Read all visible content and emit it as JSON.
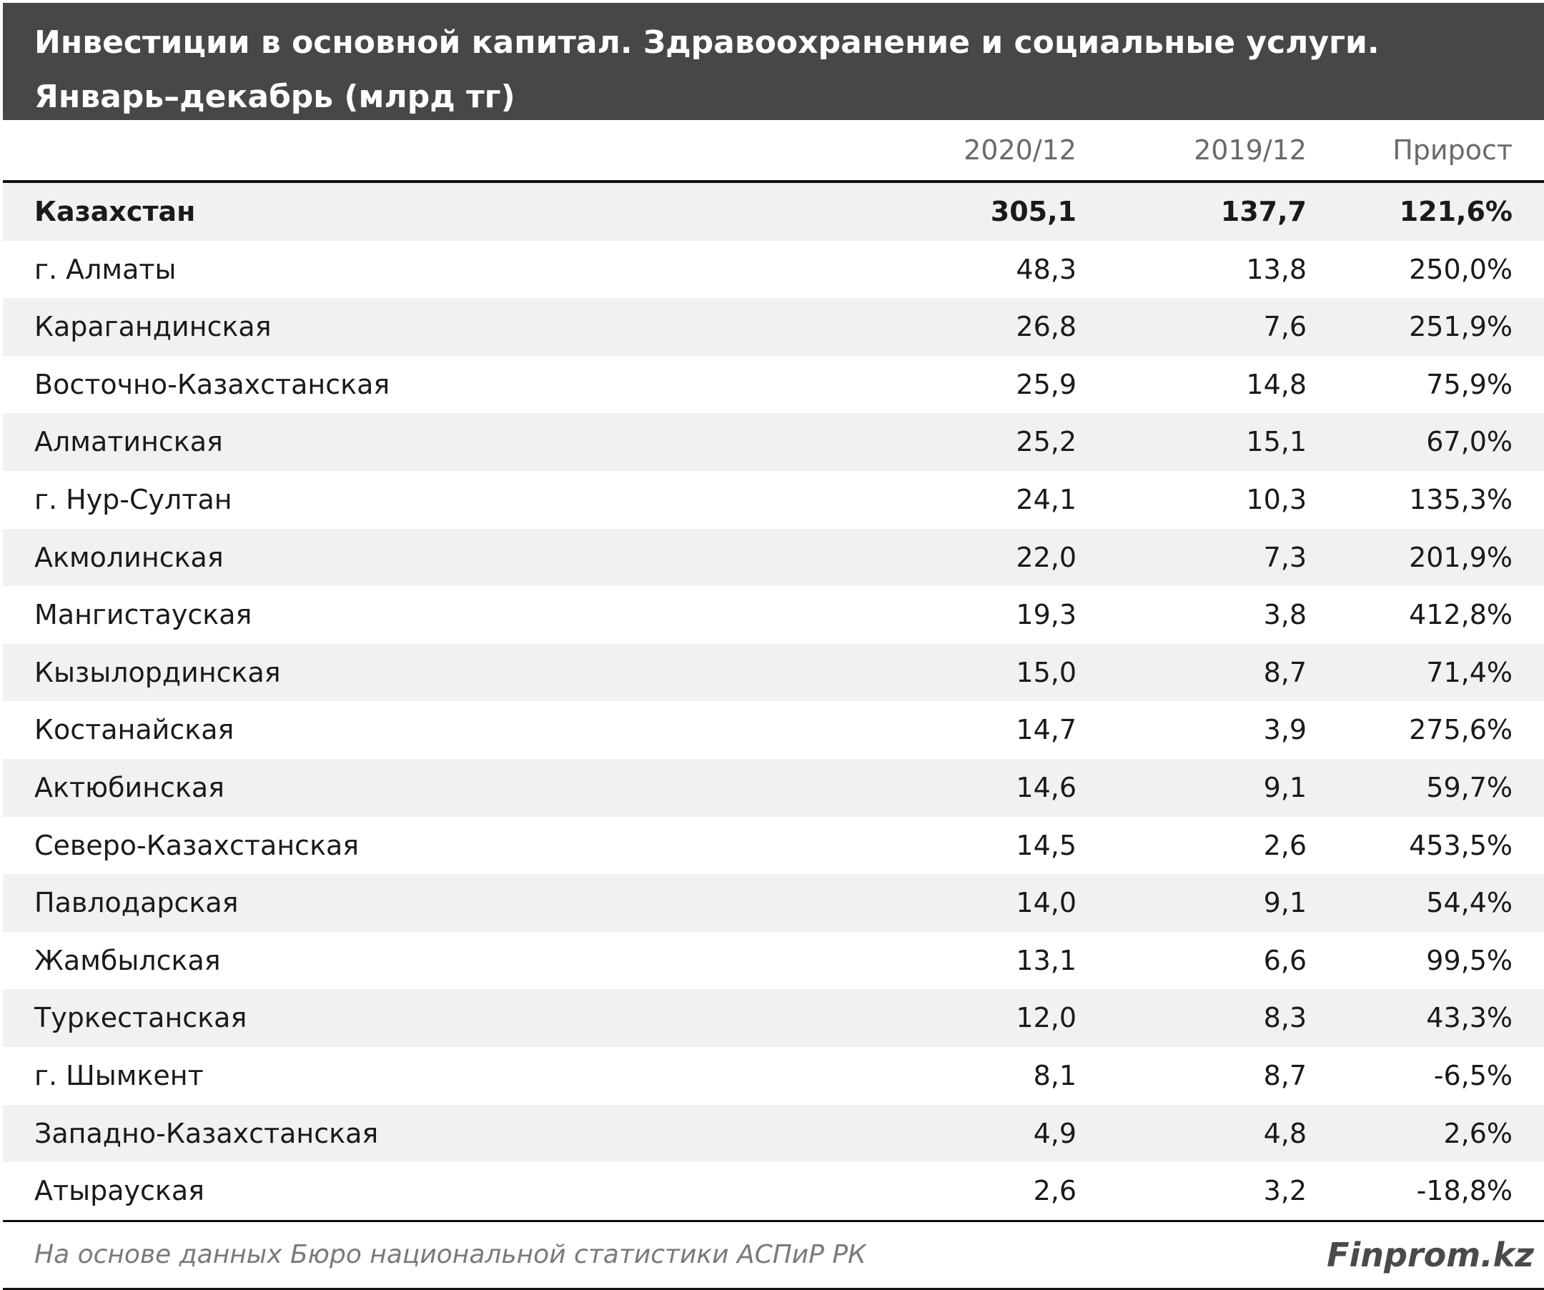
{
  "title": {
    "line1": "Инвестиции в основной капитал. Здравоохранение и социальные услуги.",
    "line2": "Январь–декабрь (млрд тг)"
  },
  "header": {
    "col1": "2020/12",
    "col2": "2019/12",
    "col3": "Прирост"
  },
  "chart_data": {
    "type": "table",
    "columns": [
      "",
      "2020/12",
      "2019/12",
      "Прирост"
    ],
    "rows": [
      {
        "name": "Казахстан",
        "v2020": "305,1",
        "v2019": "137,7",
        "growth": "121,6%",
        "total": true
      },
      {
        "name": "г. Алматы",
        "v2020": "48,3",
        "v2019": "13,8",
        "growth": "250,0%"
      },
      {
        "name": "Карагандинская",
        "v2020": "26,8",
        "v2019": "7,6",
        "growth": "251,9%"
      },
      {
        "name": "Восточно-Казахстанская",
        "v2020": "25,9",
        "v2019": "14,8",
        "growth": "75,9%"
      },
      {
        "name": "Алматинская",
        "v2020": "25,2",
        "v2019": "15,1",
        "growth": "67,0%"
      },
      {
        "name": "г. Нур-Султан",
        "v2020": "24,1",
        "v2019": "10,3",
        "growth": "135,3%"
      },
      {
        "name": "Акмолинская",
        "v2020": "22,0",
        "v2019": "7,3",
        "growth": "201,9%"
      },
      {
        "name": "Мангистауская",
        "v2020": "19,3",
        "v2019": "3,8",
        "growth": "412,8%"
      },
      {
        "name": "Кызылординская",
        "v2020": "15,0",
        "v2019": "8,7",
        "growth": "71,4%"
      },
      {
        "name": "Костанайская",
        "v2020": "14,7",
        "v2019": "3,9",
        "growth": "275,6%"
      },
      {
        "name": "Актюбинская",
        "v2020": "14,6",
        "v2019": "9,1",
        "growth": "59,7%"
      },
      {
        "name": "Северо-Казахстанская",
        "v2020": "14,5",
        "v2019": "2,6",
        "growth": "453,5%"
      },
      {
        "name": "Павлодарская",
        "v2020": "14,0",
        "v2019": "9,1",
        "growth": "54,4%"
      },
      {
        "name": "Жамбылская",
        "v2020": "13,1",
        "v2019": "6,6",
        "growth": "99,5%"
      },
      {
        "name": "Туркестанская",
        "v2020": "12,0",
        "v2019": "8,3",
        "growth": "43,3%"
      },
      {
        "name": "г. Шымкент",
        "v2020": "8,1",
        "v2019": "8,7",
        "growth": "-6,5%"
      },
      {
        "name": "Западно-Казахстанская",
        "v2020": "4,9",
        "v2019": "4,8",
        "growth": "2,6%"
      },
      {
        "name": "Атырауская",
        "v2020": "2,6",
        "v2019": "3,2",
        "growth": "-18,8%"
      }
    ]
  },
  "footer": {
    "source": "На основе данных Бюро национальной статистики АСПиР РК",
    "brand": "Finprom.kz"
  }
}
